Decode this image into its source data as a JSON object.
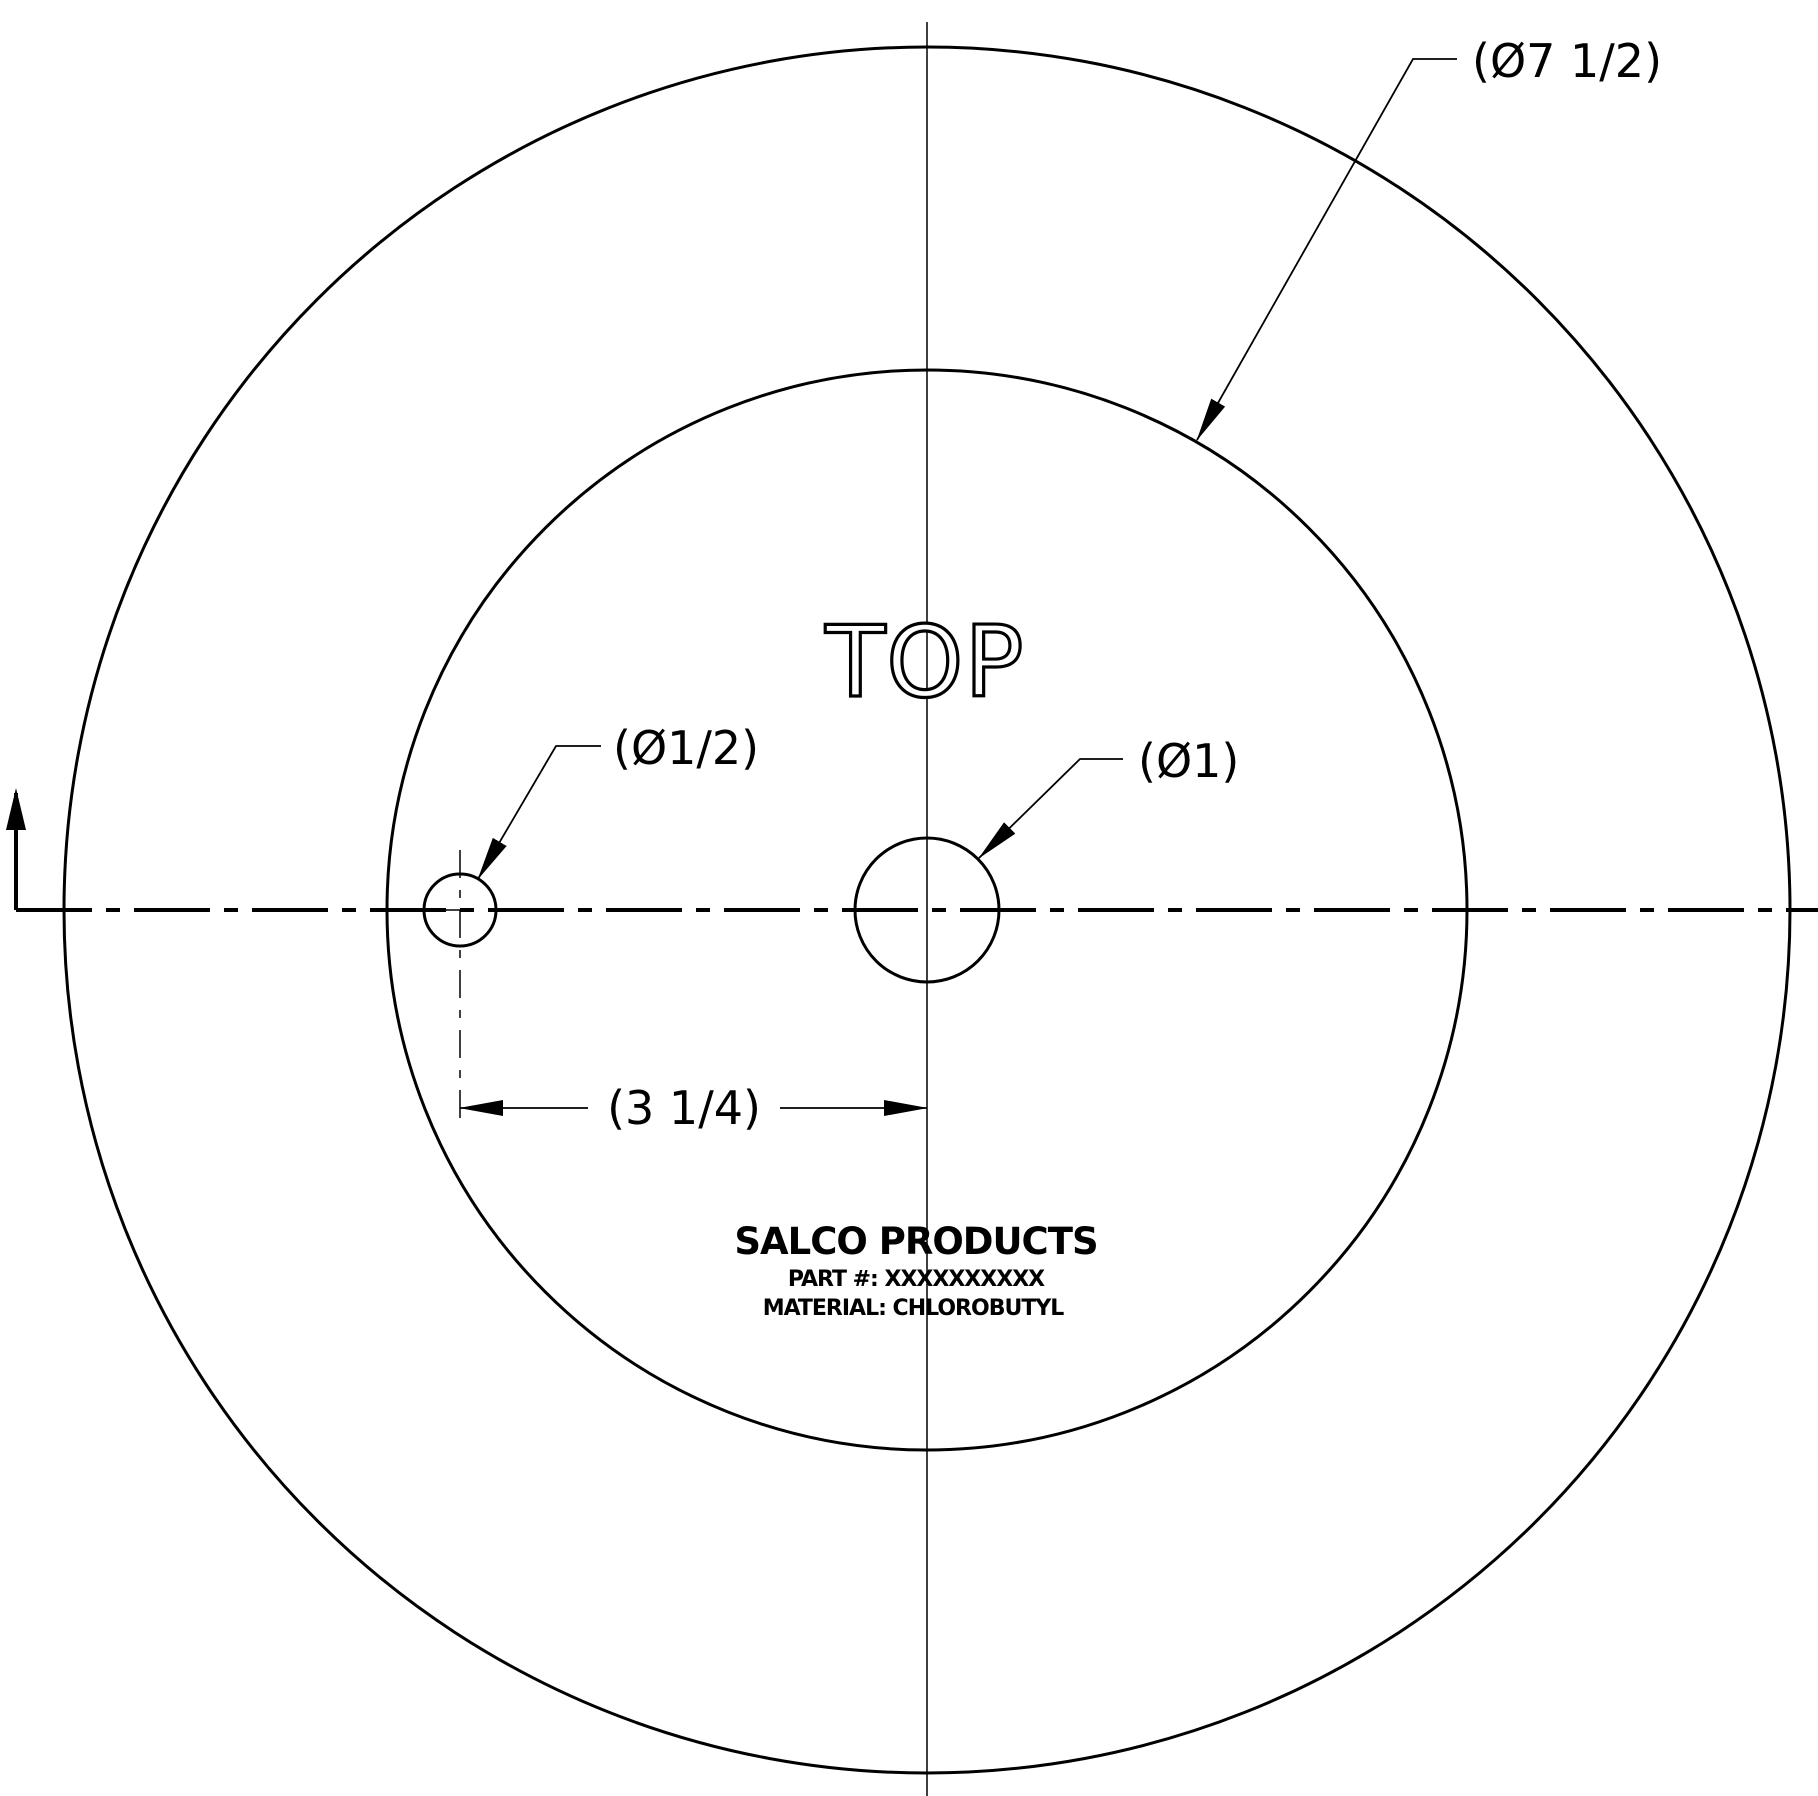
{
  "drawing": {
    "dimensions": {
      "outer_diameter": "(Ø7 1/2)",
      "small_hole_diameter": "(Ø1/2)",
      "center_hole_diameter": "(Ø1)",
      "hole_spacing": "(3 1/4)"
    },
    "labels": {
      "orientation": "TOP",
      "company": "SALCO PRODUCTS",
      "part_number": "PART #: XXXXXXXXXX",
      "material": "MATERIAL: CHLOROBUTYL"
    }
  }
}
